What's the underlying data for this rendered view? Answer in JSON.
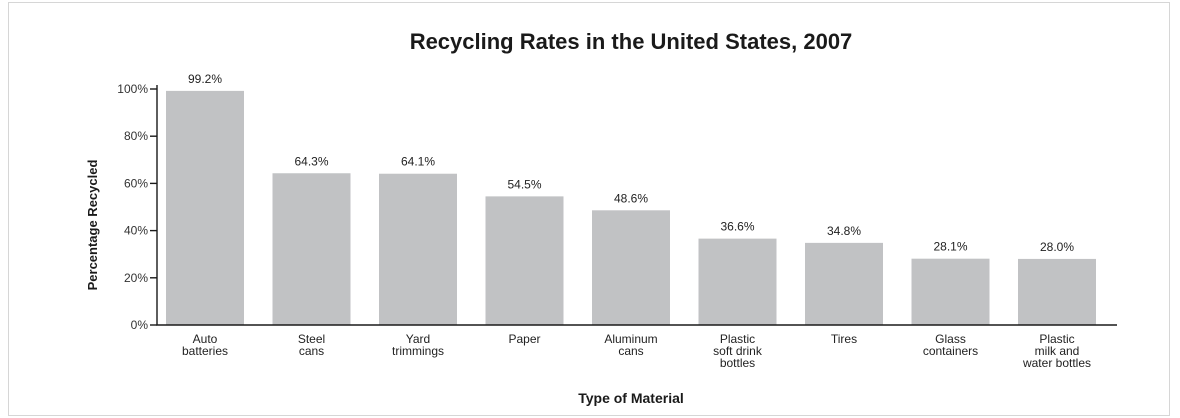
{
  "chart_data": {
    "type": "bar",
    "title": "Recycling Rates in the United States, 2007",
    "xlabel": "Type of Material",
    "ylabel": "Percentage Recycled",
    "ylim": [
      0,
      100
    ],
    "yticks": [
      0,
      20,
      40,
      60,
      80,
      100
    ],
    "ytick_labels": [
      "0%",
      "20%",
      "40%",
      "60%",
      "80%",
      "100%"
    ],
    "grid": false,
    "legend": "none",
    "bar_color": "#c1c2c4",
    "categories": [
      [
        "Auto",
        "batteries"
      ],
      [
        "Steel",
        "cans"
      ],
      [
        "Yard",
        "trimmings"
      ],
      [
        "Paper"
      ],
      [
        "Aluminum",
        "cans"
      ],
      [
        "Plastic",
        "soft drink",
        "bottles"
      ],
      [
        "Tires"
      ],
      [
        "Glass",
        "containers"
      ],
      [
        "Plastic",
        "milk and",
        "water bottles"
      ]
    ],
    "values": [
      99.2,
      64.3,
      64.1,
      54.5,
      48.6,
      36.6,
      34.8,
      28.1,
      28.0
    ],
    "data_labels": [
      "99.2%",
      "64.3%",
      "64.1%",
      "54.5%",
      "48.6%",
      "36.6%",
      "34.8%",
      "28.1%",
      "28.0%"
    ]
  }
}
